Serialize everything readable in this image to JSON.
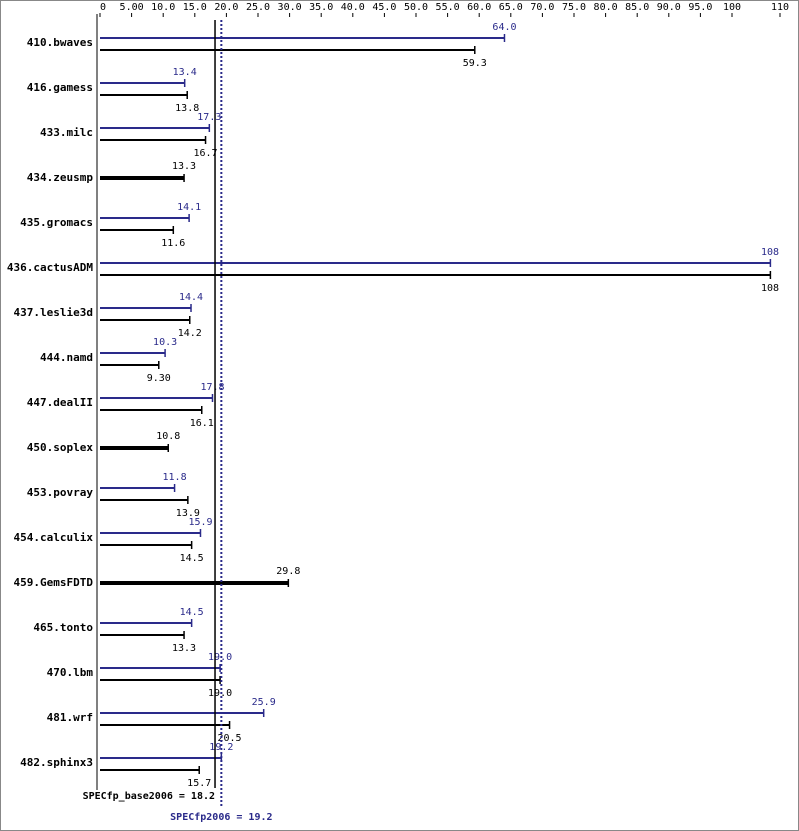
{
  "chart_data": {
    "type": "bar",
    "categories": [
      "410.bwaves",
      "416.gamess",
      "433.milc",
      "434.zeusmp",
      "435.gromacs",
      "436.cactusADM",
      "437.leslie3d",
      "444.namd",
      "447.dealII",
      "450.soplex",
      "453.povray",
      "454.calculix",
      "459.GemsFDTD",
      "465.tonto",
      "470.lbm",
      "481.wrf",
      "482.sphinx3"
    ],
    "series": [
      {
        "color": "#2a2a8a",
        "values": [
          64.0,
          13.4,
          17.3,
          null,
          14.1,
          108,
          14.4,
          10.3,
          17.8,
          null,
          11.8,
          15.9,
          null,
          14.5,
          19.0,
          25.9,
          19.2
        ],
        "value_labels": [
          "64.0",
          "13.4",
          "17.3",
          null,
          "14.1",
          "108",
          "14.4",
          "10.3",
          "17.8",
          null,
          "11.8",
          "15.9",
          null,
          "14.5",
          "19.0",
          "25.9",
          "19.2"
        ]
      },
      {
        "color": "#000000",
        "values": [
          59.3,
          13.8,
          16.7,
          13.3,
          11.6,
          108,
          14.2,
          9.3,
          16.1,
          10.8,
          13.9,
          14.5,
          29.8,
          13.3,
          19.0,
          20.5,
          15.7
        ],
        "value_labels": [
          "59.3",
          "13.8",
          "16.7",
          "13.3",
          "11.6",
          "108",
          "14.2",
          "9.30",
          "16.1",
          "10.8",
          "13.9",
          "14.5",
          "29.8",
          "13.3",
          "19.0",
          "20.5",
          "15.7"
        ]
      }
    ],
    "xlim": [
      0,
      110
    ],
    "xticks": [
      0,
      {
        "value": 5,
        "label": "5.00"
      },
      {
        "value": 10,
        "label": "10.0"
      },
      {
        "value": 15,
        "label": "15.0"
      },
      {
        "value": 20,
        "label": "20.0"
      },
      {
        "value": 25,
        "label": "25.0"
      },
      {
        "value": 30,
        "label": "30.0"
      },
      {
        "value": 35,
        "label": "35.0"
      },
      {
        "value": 40,
        "label": "40.0"
      },
      {
        "value": 45,
        "label": "45.0"
      },
      {
        "value": 50,
        "label": "50.0"
      },
      {
        "value": 55,
        "label": "55.0"
      },
      {
        "value": 60,
        "label": "60.0"
      },
      {
        "value": 65,
        "label": "65.0"
      },
      {
        "value": 70,
        "label": "70.0"
      },
      {
        "value": 75,
        "label": "75.0"
      },
      {
        "value": 80,
        "label": "80.0"
      },
      {
        "value": 85,
        "label": "85.0"
      },
      {
        "value": 90,
        "label": "90.0"
      },
      {
        "value": 95,
        "label": "95.0"
      },
      100,
      110
    ],
    "reference_lines": [
      {
        "label": "SPECfp_base2006 = 18.2",
        "value": 18.2,
        "color": "#000000",
        "style": "solid"
      },
      {
        "label": "SPECfp2006 = 19.2",
        "value": 19.2,
        "color": "#2a2a8a",
        "style": "dotted"
      }
    ]
  }
}
